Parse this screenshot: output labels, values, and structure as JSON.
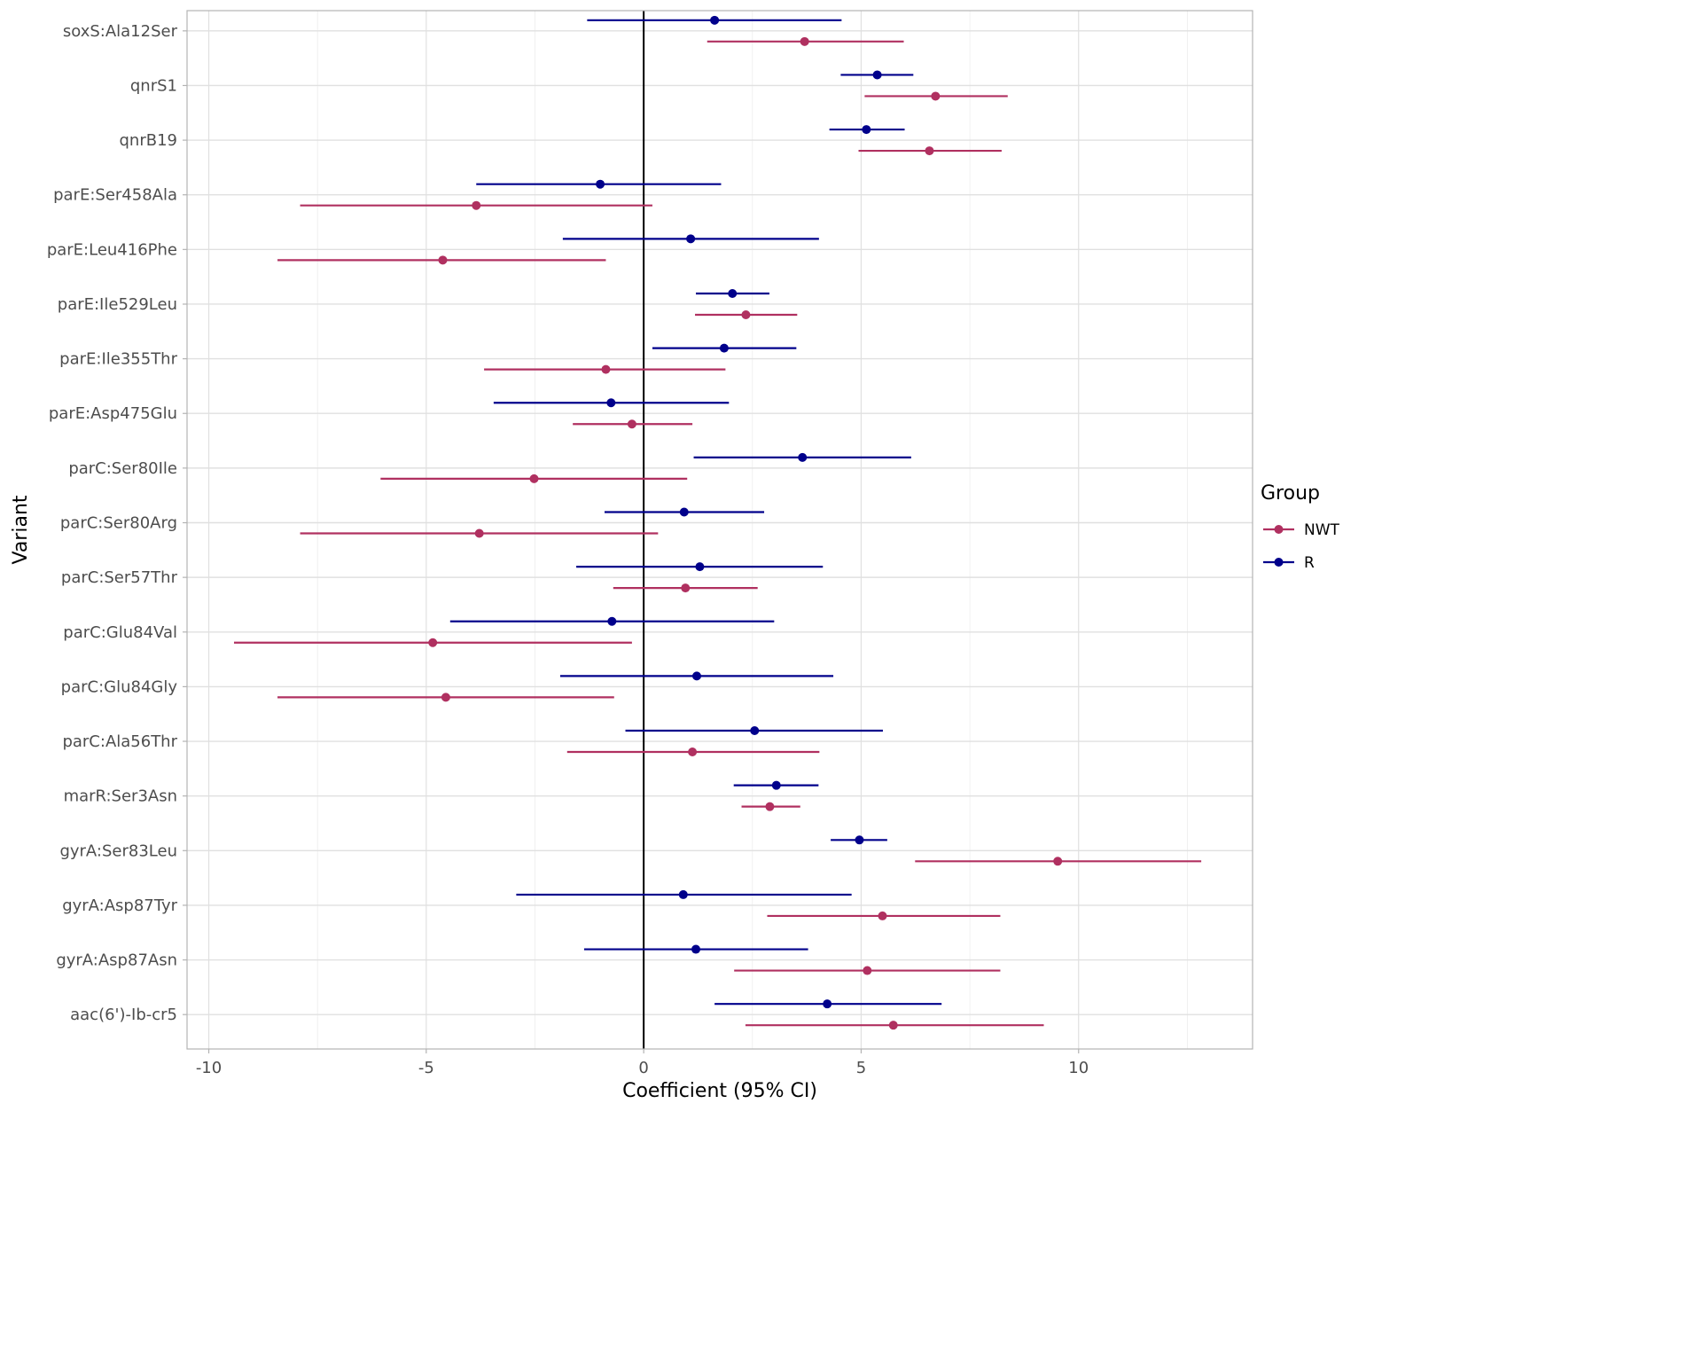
{
  "chart_data": {
    "type": "forest",
    "title": "",
    "xlabel": "Coefficient (95% CI)",
    "ylabel": "Variant",
    "xlim": [
      -10.5,
      14
    ],
    "xticks": [
      -10,
      -5,
      0,
      5,
      10
    ],
    "xtick_labels": [
      "-10",
      "-5",
      "0",
      "5",
      "10"
    ],
    "reference_line": 0,
    "grid": true,
    "legend": {
      "title": "Group",
      "position": "right",
      "entries": [
        {
          "name": "NWT",
          "color": "#B03060"
        },
        {
          "name": "R",
          "color": "#00008B"
        }
      ]
    },
    "categories": [
      "soxS:Ala12Ser",
      "qnrS1",
      "qnrB19",
      "parE:Ser458Ala",
      "parE:Leu416Phe",
      "parE:Ile529Leu",
      "parE:Ile355Thr",
      "parE:Asp475Glu",
      "parC:Ser80Ile",
      "parC:Ser80Arg",
      "parC:Ser57Thr",
      "parC:Glu84Val",
      "parC:Glu84Gly",
      "parC:Ala56Thr",
      "marR:Ser3Asn",
      "gyrA:Ser83Leu",
      "gyrA:Asp87Tyr",
      "gyrA:Asp87Asn",
      "aac(6')-Ib-cr5"
    ],
    "series": [
      {
        "name": "R",
        "color": "#00008B",
        "estimate": [
          1.63,
          5.37,
          5.12,
          -1.0,
          1.08,
          2.04,
          1.85,
          -0.75,
          3.65,
          0.93,
          1.29,
          -0.73,
          1.22,
          2.55,
          3.05,
          4.96,
          0.91,
          1.2,
          4.22
        ],
        "lower": [
          -1.3,
          4.53,
          4.27,
          -3.85,
          -1.86,
          1.2,
          0.2,
          -3.45,
          1.15,
          -0.9,
          -1.55,
          -4.45,
          -1.92,
          -0.42,
          2.07,
          4.3,
          -2.93,
          -1.37,
          1.63
        ],
        "upper": [
          4.55,
          6.2,
          6.0,
          1.78,
          4.03,
          2.89,
          3.51,
          1.96,
          6.15,
          2.77,
          4.12,
          3.0,
          4.36,
          5.5,
          4.02,
          5.6,
          4.78,
          3.78,
          6.85
        ]
      },
      {
        "name": "NWT",
        "color": "#B03060",
        "estimate": [
          3.7,
          6.71,
          6.57,
          -3.85,
          -4.62,
          2.35,
          -0.87,
          -0.27,
          -2.52,
          -3.78,
          0.96,
          -4.85,
          -4.55,
          1.12,
          2.9,
          9.52,
          5.49,
          5.14,
          5.74
        ],
        "lower": [
          1.46,
          5.08,
          4.94,
          -7.9,
          -8.42,
          1.18,
          -3.67,
          -1.63,
          -6.05,
          -7.9,
          -0.7,
          -9.42,
          -8.42,
          -1.76,
          2.25,
          6.24,
          2.84,
          2.08,
          2.34
        ],
        "upper": [
          5.98,
          8.37,
          8.23,
          0.2,
          -0.87,
          3.53,
          1.88,
          1.12,
          1.0,
          0.33,
          2.62,
          -0.27,
          -0.68,
          4.04,
          3.6,
          12.82,
          8.2,
          8.2,
          9.2
        ]
      }
    ]
  }
}
